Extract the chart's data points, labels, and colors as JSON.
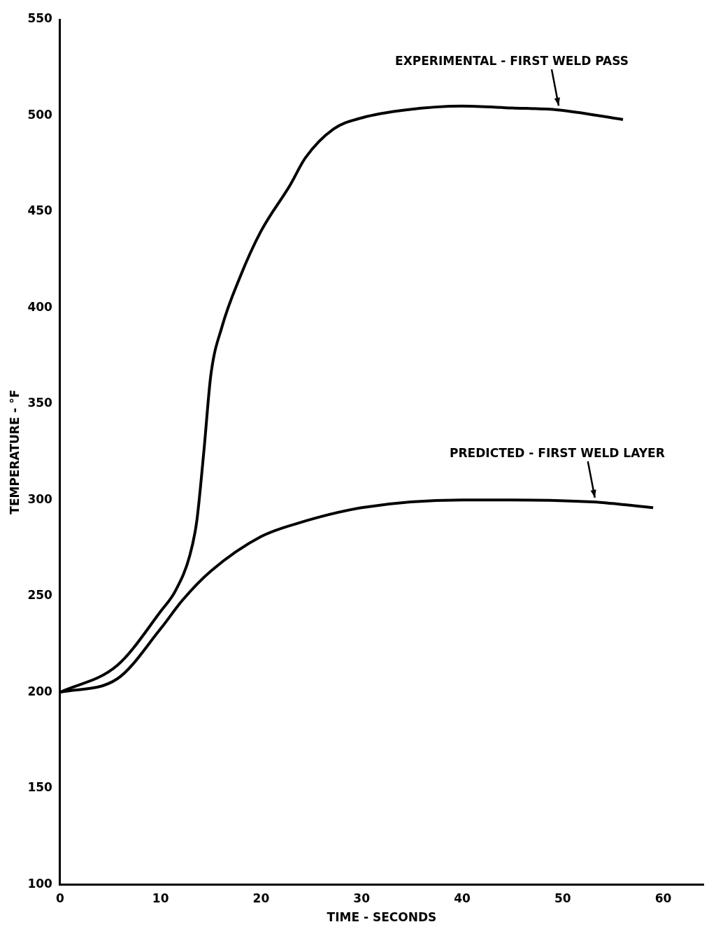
{
  "chart_data": {
    "type": "line",
    "xlabel": "TIME - SECONDS",
    "ylabel": "TEMPERATURE - °F",
    "xlim": [
      0,
      64
    ],
    "xticks": [
      0,
      10,
      20,
      30,
      40,
      50,
      60
    ],
    "ylim": [
      100,
      550
    ],
    "yticks": [
      100,
      150,
      200,
      250,
      300,
      350,
      400,
      450,
      500,
      550
    ],
    "grid": false,
    "legend": false,
    "marker": "none",
    "line_style": "solid",
    "series": [
      {
        "color": "#000000",
        "x": [
          0,
          5.7,
          10,
          11.5,
          12.9,
          13.6,
          14.3,
          15,
          16.1,
          17.9,
          20,
          22.9,
          24.4,
          27.2,
          30.1,
          34.4,
          40,
          45,
          49.5,
          56
        ],
        "values": [
          200,
          214,
          242,
          253,
          271,
          289,
          325,
          365,
          390,
          416,
          440,
          464,
          478,
          493,
          499,
          503,
          505,
          504,
          503,
          498
        ]
      },
      {
        "color": "#000000",
        "x": [
          0,
          5.7,
          10,
          12.2,
          15,
          20,
          23.7,
          30,
          40,
          45,
          53,
          59
        ],
        "values": [
          200,
          207,
          233,
          248,
          263,
          281,
          288,
          296,
          300,
          300,
          299,
          296
        ]
      }
    ],
    "annotations": [
      {
        "text": "EXPERIMENTAL - FIRST WELD PASS",
        "x": 49.6,
        "y": 503
      },
      {
        "text": "PREDICTED - FIRST WELD LAYER",
        "x": 53.2,
        "y": 299
      }
    ]
  }
}
